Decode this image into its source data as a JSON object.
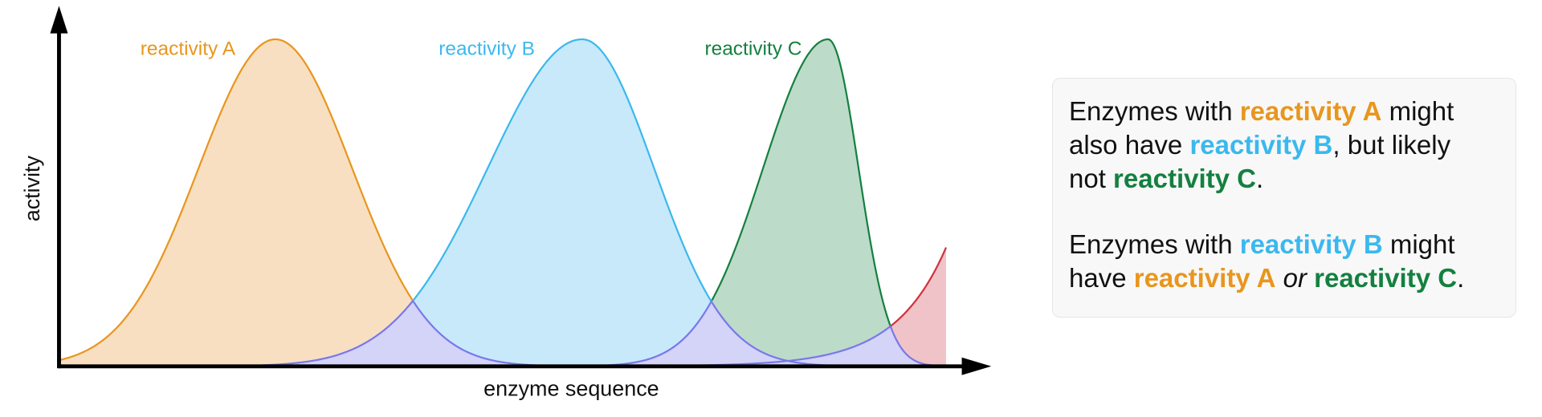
{
  "axes": {
    "y_label": "activity",
    "x_label": "enzyme sequence"
  },
  "curves": [
    {
      "label": "reactivity A",
      "color": "#e8961e"
    },
    {
      "label": "reactivity B",
      "color": "#3bb8ee"
    },
    {
      "label": "reactivity C",
      "color": "#148040"
    }
  ],
  "note": {
    "paragraphs": [
      [
        [
          {
            "text": "Enzymes with "
          },
          {
            "text": "reactivity A",
            "color": "#e8961e",
            "bold": true
          },
          {
            "text": " might"
          }
        ],
        [
          {
            "text": "also have "
          },
          {
            "text": "reactivity B",
            "color": "#3bb8ee",
            "bold": true
          },
          {
            "text": ", but likely"
          }
        ],
        [
          {
            "text": "not "
          },
          {
            "text": "reactivity C",
            "color": "#148040",
            "bold": true
          },
          {
            "text": "."
          }
        ]
      ],
      [
        [
          {
            "text": "Enzymes with "
          },
          {
            "text": "reactivity B",
            "color": "#3bb8ee",
            "bold": true
          },
          {
            "text": " might"
          }
        ],
        [
          {
            "text": "have "
          },
          {
            "text": "reactivity A",
            "color": "#e8961e",
            "bold": true
          },
          {
            "text": " "
          },
          {
            "text": "or",
            "italic": true
          },
          {
            "text": " "
          },
          {
            "text": "reactivity C",
            "color": "#148040",
            "bold": true
          },
          {
            "text": "."
          }
        ]
      ]
    ]
  }
}
